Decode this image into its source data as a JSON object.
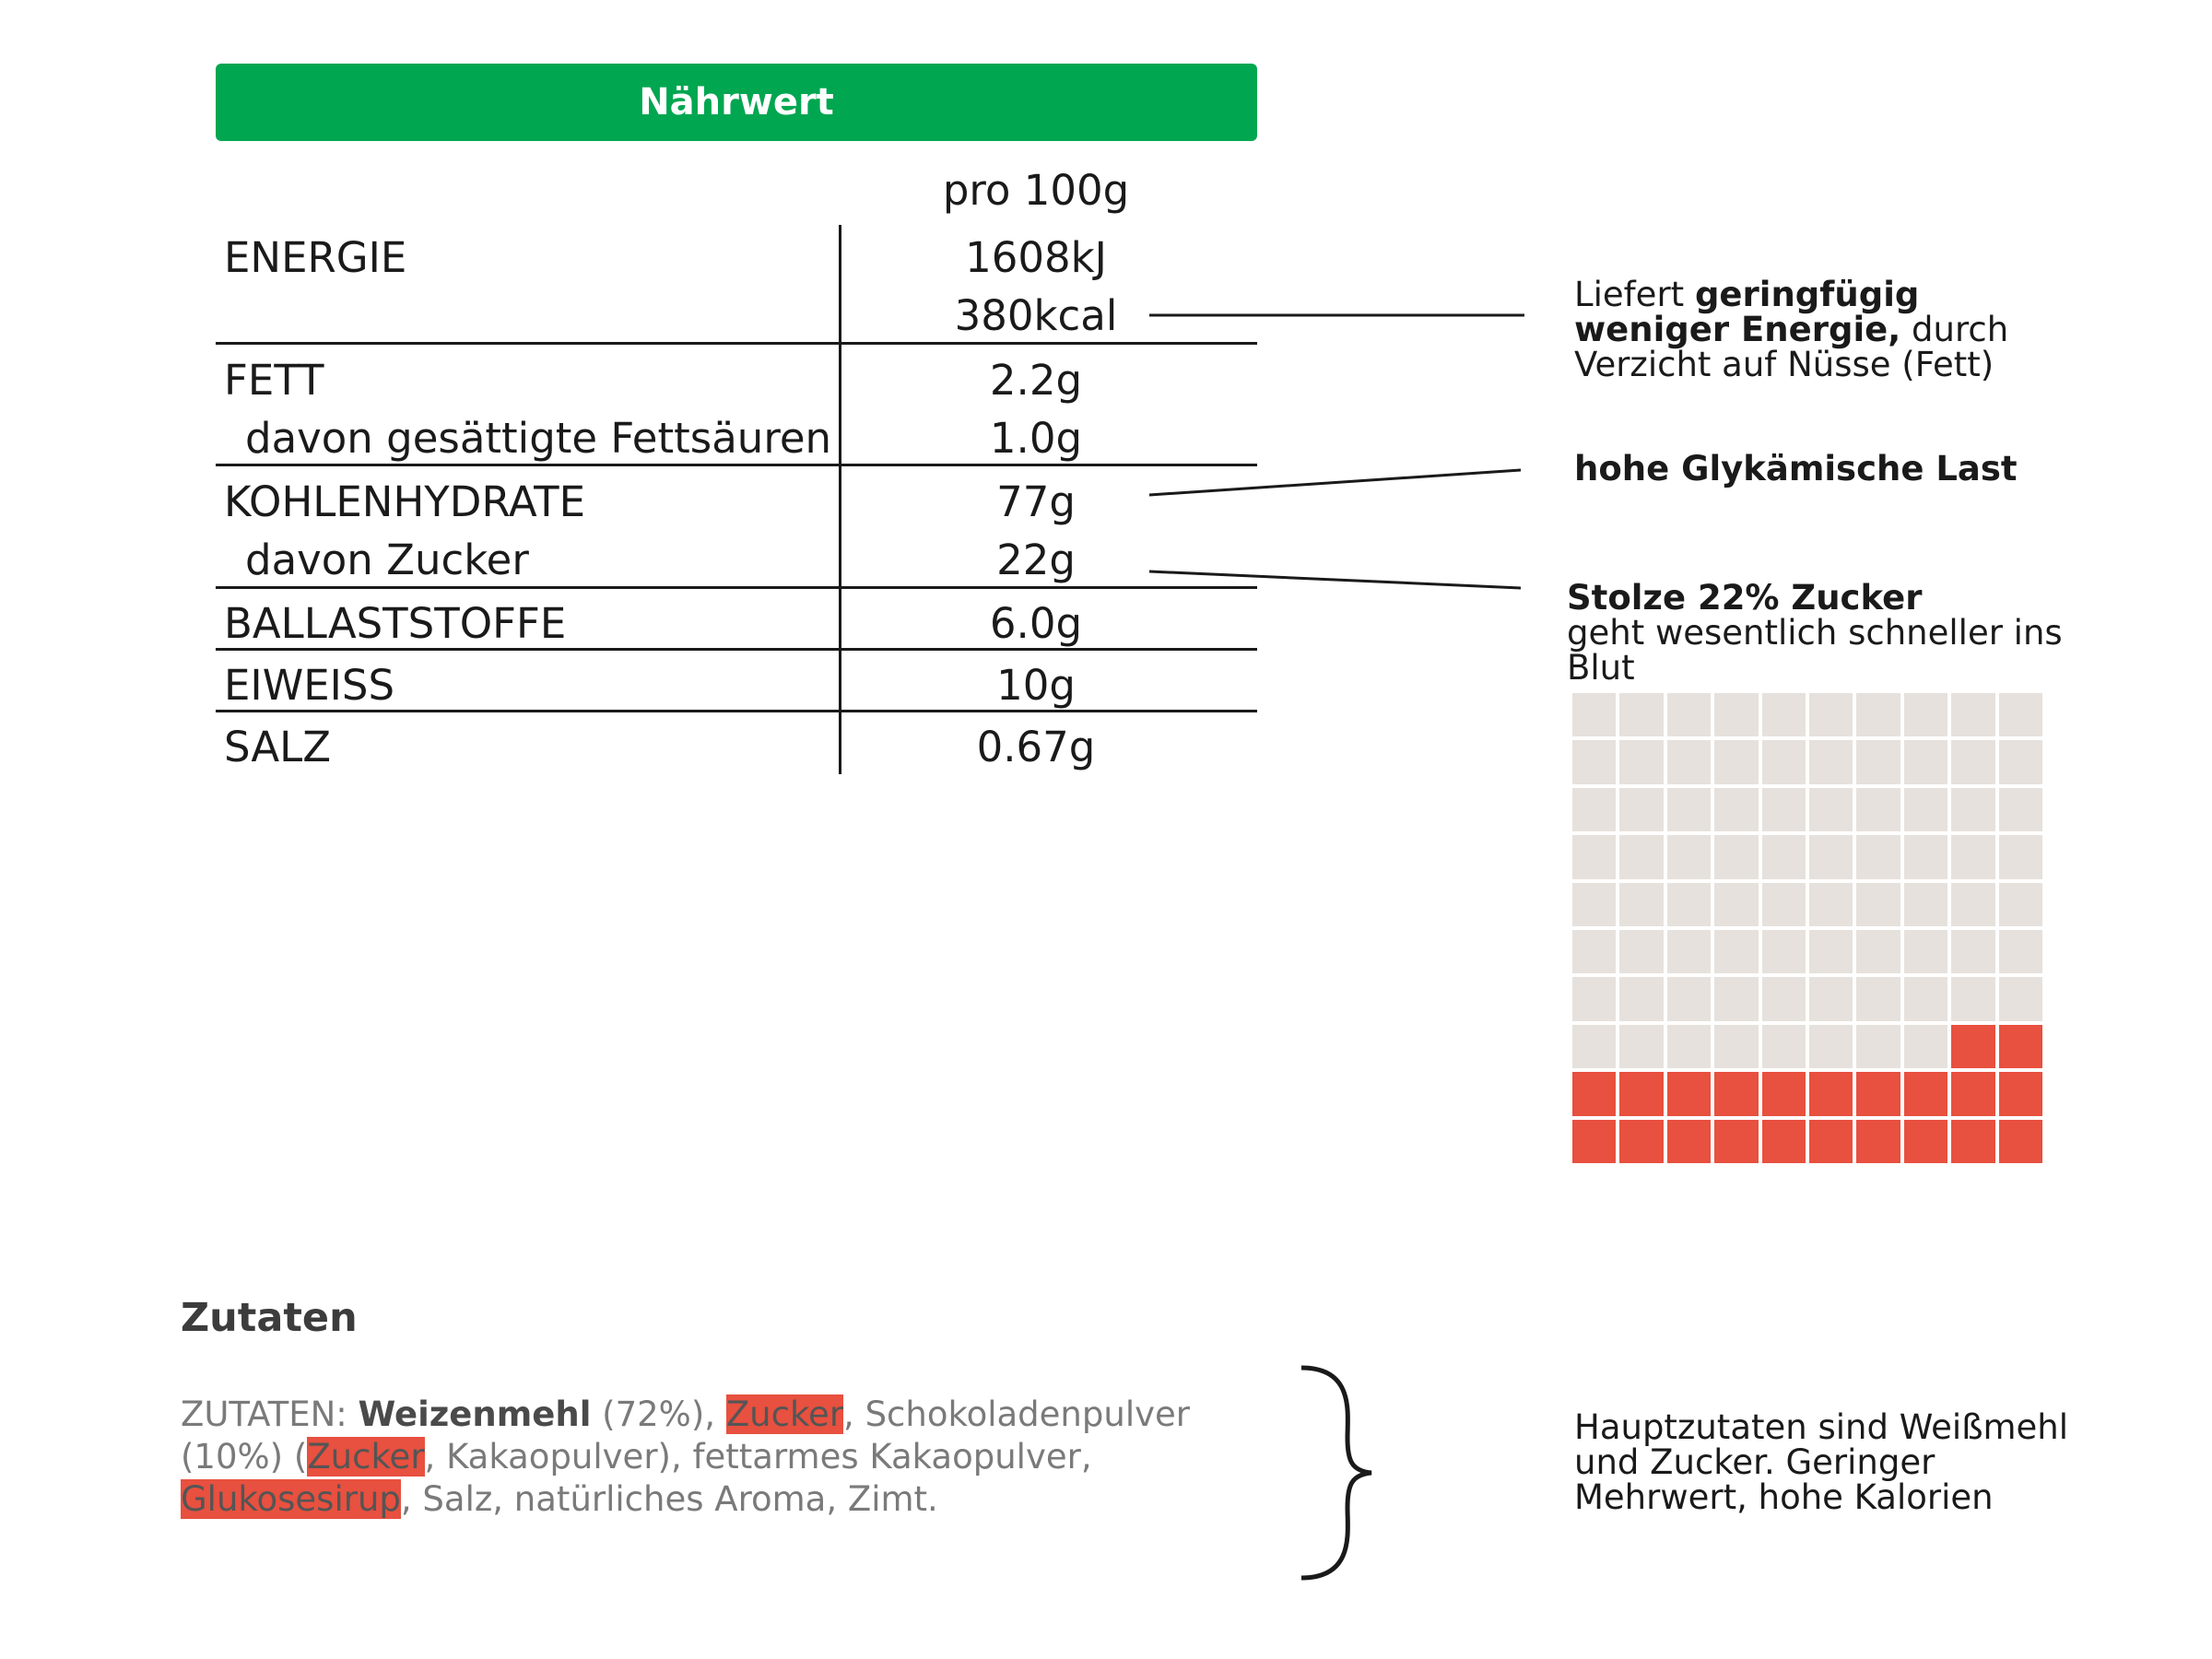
{
  "header": {
    "title": "Nährwert"
  },
  "table": {
    "column_header": "pro 100g",
    "rows": [
      {
        "label": "ENERGIE",
        "values": [
          "1608kJ",
          "380kcal"
        ]
      },
      {
        "label": "FETT",
        "values": [
          "2.2g"
        ]
      },
      {
        "label": "davon gesättigte Fettsäuren",
        "values": [
          "1.0g"
        ]
      },
      {
        "label": "KOHLENHYDRATE",
        "values": [
          "77g"
        ]
      },
      {
        "label": "davon Zucker",
        "values": [
          "22g"
        ]
      },
      {
        "label": "BALLASTSTOFFE",
        "values": [
          "6.0g"
        ]
      },
      {
        "label": "EIWEISS",
        "values": [
          "10g"
        ]
      },
      {
        "label": "SALZ",
        "values": [
          "0.67g"
        ]
      }
    ]
  },
  "annotations": {
    "energy": {
      "prefix": "Liefert ",
      "bold": "geringfügig weniger Energie,",
      "suffix": " durch Verzicht auf Nüsse (Fett)"
    },
    "glycemic": {
      "bold": "hohe Glykämische Last"
    },
    "sugar": {
      "bold": "Stolze 22% Zucker",
      "text": "geht wesentlich schneller ins Blut"
    },
    "ingredients_note": "Hauptzutaten sind Weißmehl und Zucker. Geringer Mehrwert, hohe Kalorien"
  },
  "waffle": {
    "total_cells": 100,
    "highlighted_cells": 22,
    "base_color": "#e6e1dc",
    "highlight_color": "#e8503f"
  },
  "ingredients": {
    "title": "Zutaten",
    "prefix": "ZUTATEN: ",
    "main_bold": "Weizenmehl",
    "pct1": " (72%), ",
    "sugar1": "Zucker",
    "mid1": ", Schokoladenpulver (10%) (",
    "sugar2": "Zucker",
    "mid2": ", Kakaopulver), fettarmes Kakaopulver, ",
    "glucose": "Glukosesirup",
    "end": ", Salz, natürliches Aroma, Zimt."
  },
  "colors": {
    "header_green": "#00a650",
    "highlight_red": "#e8503f"
  }
}
